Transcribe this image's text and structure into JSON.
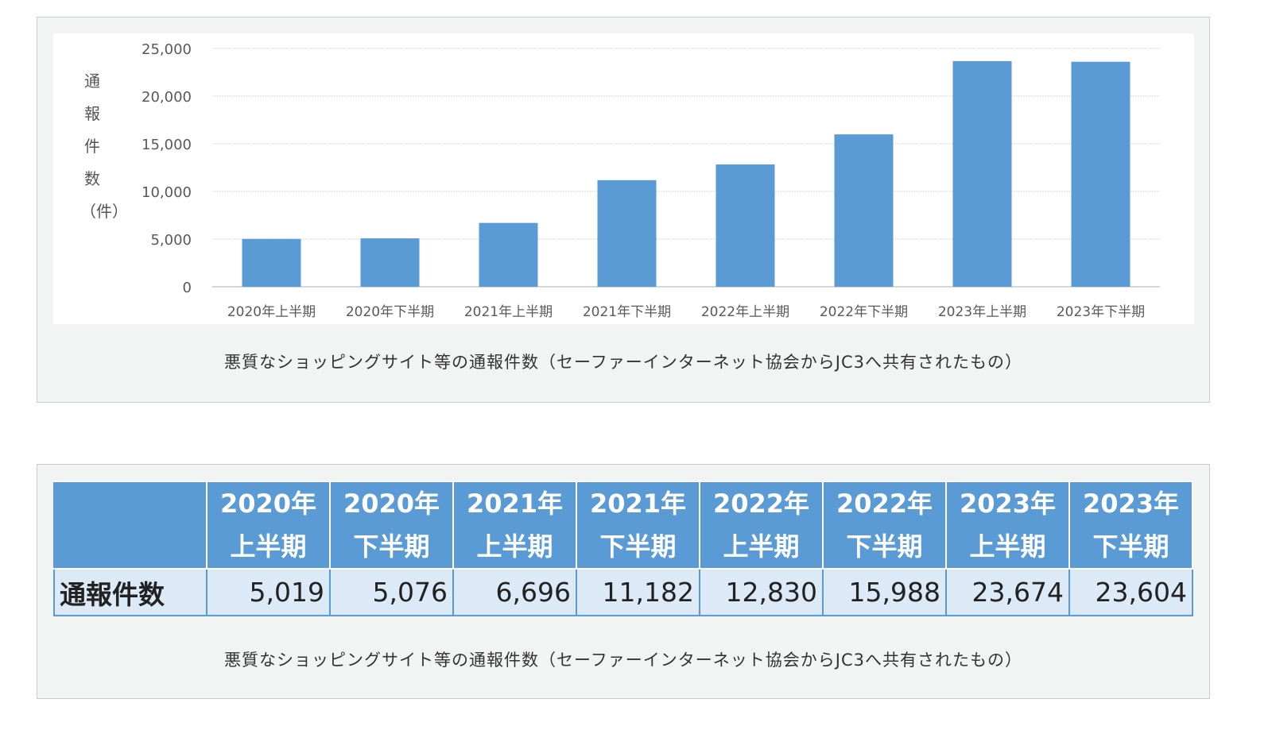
{
  "chart_data": {
    "type": "bar",
    "categories": [
      "2020年上半期",
      "2020年下半期",
      "2021年上半期",
      "2021年下半期",
      "2022年上半期",
      "2022年下半期",
      "2023年上半期",
      "2023年下半期"
    ],
    "values": [
      5019,
      5076,
      6696,
      11182,
      12830,
      15988,
      23674,
      23604
    ],
    "ylabel": "通報件数（件）",
    "xlabel": "",
    "ylim": [
      0,
      25000
    ],
    "yticks": [
      0,
      5000,
      10000,
      15000,
      20000,
      25000
    ],
    "ytick_labels": [
      "0",
      "5,000",
      "10,000",
      "15,000",
      "20,000",
      "25,000"
    ],
    "grid": true,
    "bar_color": "#5a9bd5"
  },
  "chart_caption": "悪質なショッピングサイト等の通報件数（セーファーインターネット協会からJC3へ共有されたもの）",
  "table": {
    "headers": [
      {
        "year": "2020年",
        "half": "上半期"
      },
      {
        "year": "2020年",
        "half": "下半期"
      },
      {
        "year": "2021年",
        "half": "上半期"
      },
      {
        "year": "2021年",
        "half": "下半期"
      },
      {
        "year": "2022年",
        "half": "上半期"
      },
      {
        "year": "2022年",
        "half": "下半期"
      },
      {
        "year": "2023年",
        "half": "上半期"
      },
      {
        "year": "2023年",
        "half": "下半期"
      }
    ],
    "row_label": "通報件数",
    "cells": [
      "5,019",
      "5,076",
      "6,696",
      "11,182",
      "12,830",
      "15,988",
      "23,674",
      "23,604"
    ],
    "header_color": "#5a9bd5",
    "row_color": "#dce9f6"
  },
  "table_caption": "悪質なショッピングサイト等の通報件数（セーファーインターネット協会からJC3へ共有されたもの）"
}
